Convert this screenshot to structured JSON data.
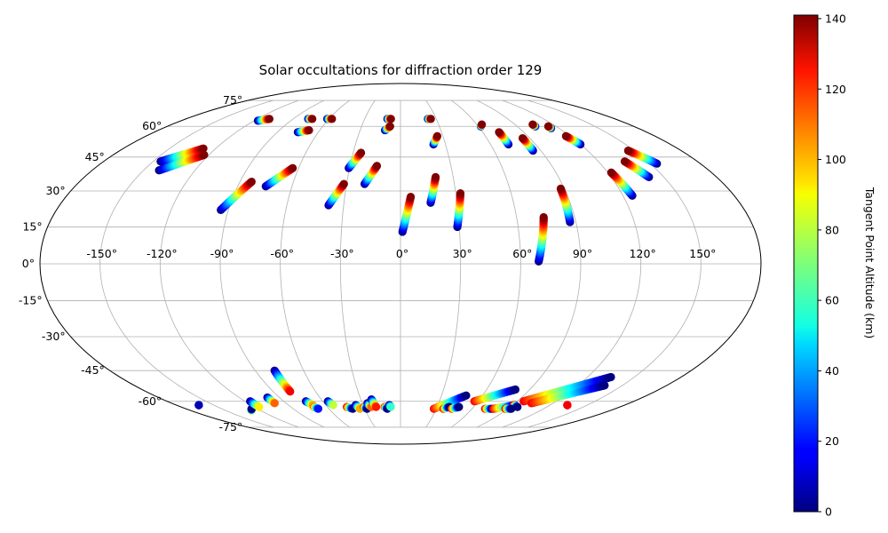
{
  "chart_data": {
    "type": "scatter",
    "projection": "mollweide",
    "title": "Solar occultations for diffraction order 129",
    "longitude_ticks": [
      {
        "value": -150,
        "label": "-150°"
      },
      {
        "value": -120,
        "label": "-120°"
      },
      {
        "value": -90,
        "label": "-90°"
      },
      {
        "value": -60,
        "label": "-60°"
      },
      {
        "value": -30,
        "label": "-30°"
      },
      {
        "value": 0,
        "label": "0°"
      },
      {
        "value": 30,
        "label": "30°"
      },
      {
        "value": 60,
        "label": "60°"
      },
      {
        "value": 90,
        "label": "90°"
      },
      {
        "value": 120,
        "label": "120°"
      },
      {
        "value": 150,
        "label": "150°"
      }
    ],
    "latitude_ticks": [
      {
        "value": 75,
        "label": "75°"
      },
      {
        "value": 60,
        "label": "60°"
      },
      {
        "value": 45,
        "label": "45°"
      },
      {
        "value": 30,
        "label": "30°"
      },
      {
        "value": 15,
        "label": "15°"
      },
      {
        "value": 0,
        "label": "0°"
      },
      {
        "value": -15,
        "label": "-15°"
      },
      {
        "value": -30,
        "label": "-30°"
      },
      {
        "value": -45,
        "label": "-45°"
      },
      {
        "value": -60,
        "label": "-60°"
      },
      {
        "value": -75,
        "label": "-75°"
      }
    ],
    "grid": true,
    "colorbar": {
      "label": "Tangent Point Altitude (km)",
      "colormap": "jet",
      "range": [
        0,
        141
      ],
      "ticks": [
        {
          "value": 0,
          "label": "0"
        },
        {
          "value": 20,
          "label": "20"
        },
        {
          "value": 40,
          "label": "40"
        },
        {
          "value": 60,
          "label": "60"
        },
        {
          "value": 80,
          "label": "80"
        },
        {
          "value": 100,
          "label": "100"
        },
        {
          "value": 120,
          "label": "120"
        },
        {
          "value": 140,
          "label": "140"
        }
      ]
    },
    "occultations": [
      {
        "lon0": -145.5,
        "lat0": 43,
        "lon1": -128,
        "lat1": 49,
        "alt0": 0,
        "alt1": 141
      },
      {
        "lon0": -141,
        "lat0": 39,
        "lon1": -123,
        "lat1": 46,
        "alt0": 0,
        "alt1": 141
      },
      {
        "lon0": -117,
        "lat0": 63,
        "lon1": -110,
        "lat1": 64,
        "alt0": 0,
        "alt1": 141
      },
      {
        "lon0": -94,
        "lat0": 22,
        "lon1": -83.5,
        "lat1": 34,
        "alt0": 0,
        "alt1": 141
      },
      {
        "lon0": -77.5,
        "lat0": 64,
        "lon1": -74,
        "lat1": 64,
        "alt0": 0,
        "alt1": 141
      },
      {
        "lon0": -75,
        "lat0": 57,
        "lon1": -68,
        "lat1": 58,
        "alt0": 0,
        "alt1": 141
      },
      {
        "lon0": -74.5,
        "lat0": 32,
        "lon1": -63.5,
        "lat1": 40,
        "alt0": 0,
        "alt1": 141
      },
      {
        "lon0": -61.5,
        "lat0": 64,
        "lon1": -57.5,
        "lat1": 64,
        "alt0": 0,
        "alt1": 141
      },
      {
        "lon0": -38,
        "lat0": 24,
        "lon1": -31.5,
        "lat1": 33,
        "alt0": 0,
        "alt1": 141
      },
      {
        "lon0": -30.5,
        "lat0": 40,
        "lon1": -25,
        "lat1": 47,
        "alt0": 0,
        "alt1": 141
      },
      {
        "lon0": -20,
        "lat0": 33,
        "lon1": -14,
        "lat1": 41,
        "alt0": 0,
        "alt1": 141
      },
      {
        "lon0": -11,
        "lat0": 64,
        "lon1": -8,
        "lat1": 64,
        "alt0": 0,
        "alt1": 141
      },
      {
        "lon0": -11.5,
        "lat0": 58,
        "lon1": -8,
        "lat1": 60,
        "alt0": 0,
        "alt1": 141
      },
      {
        "lon0": 1,
        "lat0": 13,
        "lon1": 5.5,
        "lat1": 27.5,
        "alt0": 0,
        "alt1": 141
      },
      {
        "lon0": 16,
        "lat0": 25,
        "lon1": 20,
        "lat1": 36,
        "alt0": 0,
        "alt1": 141
      },
      {
        "lon0": 22,
        "lat0": 51,
        "lon1": 26,
        "lat1": 55,
        "alt0": 0,
        "alt1": 141
      },
      {
        "lon0": 23,
        "lat0": 64,
        "lon1": 25.5,
        "lat1": 64,
        "alt0": 0,
        "alt1": 141
      },
      {
        "lon0": 29,
        "lat0": 15,
        "lon1": 32.5,
        "lat1": 29,
        "alt0": 0,
        "alt1": 141
      },
      {
        "lon0": 62,
        "lat0": 60,
        "lon1": 64,
        "lat1": 61,
        "alt0": 0,
        "alt1": 141
      },
      {
        "lon0": 69,
        "lat0": 1,
        "lon1": 74,
        "lat1": 19,
        "alt0": 0,
        "alt1": 141
      },
      {
        "lon0": 72,
        "lat0": 51,
        "lon1": 72,
        "lat1": 57,
        "alt0": 0,
        "alt1": 141
      },
      {
        "lon0": 85,
        "lat0": 48,
        "lon1": 85,
        "lat1": 54,
        "alt0": 0,
        "alt1": 141
      },
      {
        "lon0": 87,
        "lat0": 17,
        "lon1": 88,
        "lat1": 31,
        "alt0": 0,
        "alt1": 141
      },
      {
        "lon0": 104,
        "lat0": 60,
        "lon1": 104,
        "lat1": 61,
        "alt0": 0,
        "alt1": 141
      },
      {
        "lon0": 114,
        "lat0": 59,
        "lon1": 114,
        "lat1": 60,
        "alt0": 0,
        "alt1": 141
      },
      {
        "lon0": 120,
        "lat0": 51,
        "lon1": 117,
        "lat1": 55,
        "alt0": 0,
        "alt1": 141
      },
      {
        "lon0": 125,
        "lat0": 28,
        "lon1": 122,
        "lat1": 38,
        "alt0": 0,
        "alt1": 141
      },
      {
        "lon0": 141.5,
        "lat0": 36,
        "lon1": 136,
        "lat1": 43,
        "alt0": 0,
        "alt1": 141
      },
      {
        "lon0": 154,
        "lat0": 42,
        "lon1": 146,
        "lat1": 48,
        "alt0": 0,
        "alt1": 141
      },
      {
        "lon0": -162,
        "lat0": -62,
        "lon1": -162,
        "lat1": -62,
        "alt0": 0,
        "alt1": 8
      },
      {
        "lon0": -128,
        "lat0": -65,
        "lon1": -125,
        "lat1": -64,
        "alt0": 90,
        "alt1": 0
      },
      {
        "lon0": -116,
        "lat0": -60,
        "lon1": -116,
        "lat1": -63,
        "alt0": 0,
        "alt1": 90
      },
      {
        "lon0": -99,
        "lat0": -58,
        "lon1": -99,
        "lat1": -61,
        "alt0": 0,
        "alt1": 110
      },
      {
        "lon0": -78,
        "lat0": -45,
        "lon1": -78,
        "lat1": -55,
        "alt0": 0,
        "alt1": 125
      },
      {
        "lon0": -73,
        "lat0": -60,
        "lon1": -70.5,
        "lat1": -62,
        "alt0": 0,
        "alt1": 100
      },
      {
        "lon0": -71,
        "lat0": -63,
        "lon1": -69,
        "lat1": -64,
        "alt0": 110,
        "alt1": 20
      },
      {
        "lon0": -56,
        "lat0": -60,
        "lon1": -54,
        "lat1": -62,
        "alt0": 0,
        "alt1": 80
      },
      {
        "lon0": -44,
        "lat0": -63,
        "lon1": -40,
        "lat1": -64,
        "alt0": 125,
        "alt1": 0
      },
      {
        "lon0": -36,
        "lat0": -62,
        "lon1": -34,
        "lat1": -64,
        "alt0": 0,
        "alt1": 100
      },
      {
        "lon0": -30,
        "lat0": -63,
        "lon1": -28,
        "lat1": -64,
        "alt0": 120,
        "alt1": 0
      },
      {
        "lon0": -26,
        "lat0": -61,
        "lon1": -24,
        "lat1": -63,
        "alt0": 0,
        "alt1": 110
      },
      {
        "lon0": -22,
        "lat0": -59,
        "lon1": -20,
        "lat1": -63,
        "alt0": 0,
        "alt1": 120
      },
      {
        "lon0": -13,
        "lat0": -63,
        "lon1": -11,
        "lat1": -64,
        "alt0": 125,
        "alt1": 0
      },
      {
        "lon0": -9,
        "lat0": -62,
        "lon1": -8,
        "lat1": -63,
        "alt0": 0,
        "alt1": 60
      },
      {
        "lon0": 28,
        "lat0": -64,
        "lon1": 48,
        "lat1": -57,
        "alt0": 125,
        "alt1": 0
      },
      {
        "lon0": 36,
        "lat0": -64,
        "lon1": 40,
        "lat1": -63,
        "alt0": 125,
        "alt1": 0
      },
      {
        "lon0": 43,
        "lat0": -64,
        "lon1": 48,
        "lat1": -63,
        "alt0": 120,
        "alt1": 0
      },
      {
        "lon0": 57,
        "lat0": -60,
        "lon1": 80,
        "lat1": -54,
        "alt0": 125,
        "alt1": 0
      },
      {
        "lon0": 71,
        "lat0": -64,
        "lon1": 77,
        "lat1": -64,
        "alt0": 125,
        "alt1": 0
      },
      {
        "lon0": 78,
        "lat0": -64,
        "lon1": 92,
        "lat1": -62,
        "alt0": 125,
        "alt1": 0
      },
      {
        "lon0": 91,
        "lat0": -62,
        "lon1": 96,
        "lat1": -63,
        "alt0": 125,
        "alt1": 0
      },
      {
        "lon0": 88,
        "lat0": -64,
        "lon1": 93,
        "lat1": -64,
        "alt0": 125,
        "alt1": 0
      },
      {
        "lon0": 95,
        "lat0": -60,
        "lon1": 135,
        "lat1": -48,
        "alt0": 125,
        "alt1": 0
      },
      {
        "lon0": 103,
        "lat0": -61,
        "lon1": 138,
        "lat1": -52,
        "alt0": 125,
        "alt1": 0
      },
      {
        "lon0": 134,
        "lat0": -62,
        "lon1": 134,
        "lat1": -62,
        "alt0": 125,
        "alt1": 125
      }
    ]
  }
}
